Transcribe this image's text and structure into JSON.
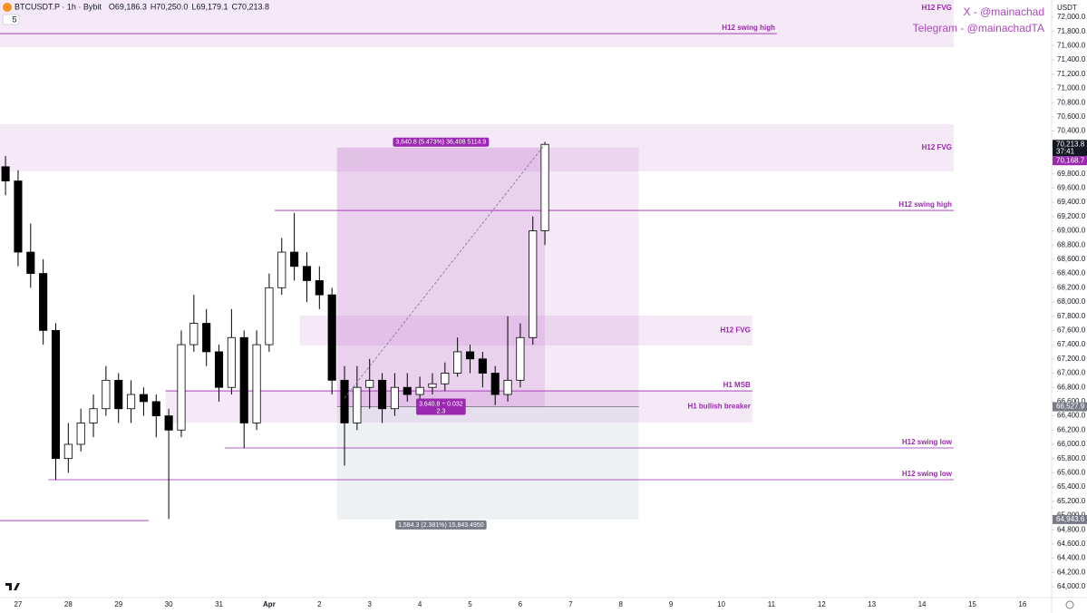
{
  "chart_data": {
    "type": "candlestick",
    "title": "BTCUSDT.P · 1h · Bybit",
    "ohlc_header": [
      {
        "value": 69186.3,
        "label": "O69,186.3"
      },
      {
        "value": 70250.0,
        "label": "H70,250.0"
      },
      {
        "value": 69179.1,
        "label": "L69,179.1"
      },
      {
        "value": 70213.8,
        "label": "C70,213.8"
      }
    ],
    "indicator_count": 5,
    "currency": "USDT",
    "watermark": [
      "X - @mainachad",
      "Telegram - @mainachadTA"
    ],
    "x": [
      -0.25,
      0,
      0.25,
      0.5,
      0.75,
      1,
      1.25,
      1.5,
      1.75,
      2,
      2.25,
      2.5,
      2.75,
      3,
      3.25,
      3.5,
      3.75,
      4,
      4.25,
      4.5,
      4.75,
      5,
      5.25,
      5.5,
      5.75,
      6,
      6.25,
      6.5,
      6.75,
      7,
      7.25,
      7.5,
      7.75,
      8,
      8.25,
      8.5,
      8.75,
      9,
      9.25,
      9.5,
      9.75,
      10,
      10.25,
      10.49
    ],
    "open": [
      69900,
      69700,
      68700,
      68400,
      67600,
      65800,
      66000,
      66300,
      66500,
      66900,
      66500,
      66700,
      66600,
      66400,
      66200,
      67400,
      67700,
      67300,
      66800,
      67500,
      66300,
      67400,
      68200,
      68700,
      68500,
      68300,
      68100,
      66900,
      66300,
      66800,
      66900,
      66500,
      66800,
      66700,
      66800,
      66850,
      67000,
      67300,
      67200,
      67000,
      66700,
      66900,
      67500,
      69000
    ],
    "high": [
      70050,
      69850,
      69100,
      68600,
      67700,
      66300,
      66500,
      66700,
      67100,
      67000,
      66900,
      66800,
      66700,
      66500,
      67600,
      68100,
      67900,
      67400,
      67900,
      67600,
      67600,
      68400,
      68900,
      69250,
      68700,
      68500,
      68200,
      67100,
      67100,
      67200,
      67000,
      67000,
      67000,
      66950,
      67000,
      67150,
      67500,
      67400,
      67300,
      67100,
      67800,
      67700,
      69200,
      70250
    ],
    "low": [
      69500,
      68500,
      68200,
      67400,
      65500,
      65600,
      65900,
      66100,
      66400,
      66300,
      66300,
      66400,
      66100,
      64950,
      66100,
      67300,
      67100,
      66600,
      66700,
      65950,
      66200,
      67300,
      68100,
      68300,
      68000,
      67900,
      66700,
      65700,
      66200,
      66500,
      66300,
      66400,
      66600,
      66600,
      66700,
      66750,
      66950,
      67000,
      66800,
      66550,
      66600,
      66800,
      67400,
      68800
    ],
    "close": [
      69700,
      68700,
      68400,
      67600,
      65800,
      66000,
      66300,
      66500,
      66900,
      66500,
      66700,
      66600,
      66400,
      66200,
      67400,
      67700,
      67300,
      66800,
      67500,
      66300,
      67400,
      68200,
      68700,
      68500,
      68300,
      68100,
      66900,
      66300,
      66800,
      66900,
      66500,
      66800,
      66700,
      66800,
      66850,
      67000,
      67300,
      67200,
      67000,
      66700,
      66900,
      67500,
      69000,
      70213.8
    ],
    "up_color": "#ffffff",
    "down_color": "#000000",
    "xlim": [
      -0.36,
      20.58
    ],
    "ylim": [
      63847,
      72242
    ],
    "grid": false,
    "xticks": [
      {
        "value": 0,
        "label": "27"
      },
      {
        "value": 1,
        "label": "28"
      },
      {
        "value": 2,
        "label": "29"
      },
      {
        "value": 3,
        "label": "30"
      },
      {
        "value": 4,
        "label": "31"
      },
      {
        "value": 5,
        "label": "Apr"
      },
      {
        "value": 6,
        "label": "2"
      },
      {
        "value": 7,
        "label": "3"
      },
      {
        "value": 8,
        "label": "4"
      },
      {
        "value": 9,
        "label": "5"
      },
      {
        "value": 10,
        "label": "6"
      },
      {
        "value": 11,
        "label": "7"
      },
      {
        "value": 12,
        "label": "8"
      },
      {
        "value": 13,
        "label": "9"
      },
      {
        "value": 14,
        "label": "10"
      },
      {
        "value": 15,
        "label": "11"
      },
      {
        "value": 16,
        "label": "12"
      },
      {
        "value": 17,
        "label": "13"
      },
      {
        "value": 18,
        "label": "14"
      },
      {
        "value": 19,
        "label": "15"
      },
      {
        "value": 20,
        "label": "16"
      }
    ],
    "yticks": [
      {
        "value": 72000,
        "label": "72,000.0"
      },
      {
        "value": 71800,
        "label": "71,800.0"
      },
      {
        "value": 71600,
        "label": "71,600.0"
      },
      {
        "value": 71400,
        "label": "71,400.0"
      },
      {
        "value": 71200,
        "label": "71,200.0"
      },
      {
        "value": 71000,
        "label": "71,000.0"
      },
      {
        "value": 70800,
        "label": "70,800.0"
      },
      {
        "value": 70600,
        "label": "70,600.0"
      },
      {
        "value": 70400,
        "label": "70,400.0"
      },
      {
        "value": 70200,
        "label": "70,200.0"
      },
      {
        "value": 70000,
        "label": "70,000.0"
      },
      {
        "value": 69800,
        "label": "69,800.0"
      },
      {
        "value": 69600,
        "label": "69,600.0"
      },
      {
        "value": 69400,
        "label": "69,400.0"
      },
      {
        "value": 69200,
        "label": "69,200.0"
      },
      {
        "value": 69000,
        "label": "69,000.0"
      },
      {
        "value": 68800,
        "label": "68,800.0"
      },
      {
        "value": 68600,
        "label": "68,600.0"
      },
      {
        "value": 68400,
        "label": "68,400.0"
      },
      {
        "value": 68200,
        "label": "68,200.0"
      },
      {
        "value": 68000,
        "label": "68,000.0"
      },
      {
        "value": 67800,
        "label": "67,800.0"
      },
      {
        "value": 67600,
        "label": "67,600.0"
      },
      {
        "value": 67400,
        "label": "67,400.0"
      },
      {
        "value": 67200,
        "label": "67,200.0"
      },
      {
        "value": 67000,
        "label": "67,000.0"
      },
      {
        "value": 66800,
        "label": "66,800.0"
      },
      {
        "value": 66600,
        "label": "66,600.0"
      },
      {
        "value": 66400,
        "label": "66,400.0"
      },
      {
        "value": 66200,
        "label": "66,200.0"
      },
      {
        "value": 66000,
        "label": "66,000.0"
      },
      {
        "value": 65800,
        "label": "65,800.0"
      },
      {
        "value": 65600,
        "label": "65,600.0"
      },
      {
        "value": 65400,
        "label": "65,400.0"
      },
      {
        "value": 65200,
        "label": "65,200.0"
      },
      {
        "value": 65000,
        "label": "65,000.0"
      },
      {
        "value": 64800,
        "label": "64,800.0"
      },
      {
        "value": 64600,
        "label": "64,600.0"
      },
      {
        "value": 64400,
        "label": "64,400.0"
      },
      {
        "value": 64200,
        "label": "64,200.0"
      },
      {
        "value": 64000,
        "label": "64,000.0"
      }
    ],
    "zone_color": "#9c27b0",
    "zones": [
      {
        "label": "H12 FVG",
        "y": [
          71580,
          72242
        ],
        "x": [
          -0.36,
          18.63
        ],
        "label_pos": "top"
      },
      {
        "label": "H12 FVG",
        "y": [
          69834,
          70497
        ],
        "x": [
          -0.36,
          18.63
        ],
        "label_pos": "middle"
      },
      {
        "label": "H12 FVG",
        "y": [
          67388,
          67809
        ],
        "x": [
          5.61,
          14.62
        ],
        "label_pos": "middle"
      },
      {
        "label": "H1 bullish breaker",
        "y": [
          66305,
          66751
        ],
        "x": [
          2.94,
          14.62
        ],
        "label_pos": "middle"
      }
    ],
    "levels": [
      {
        "label": "H12 swing high",
        "y": 71770,
        "x": [
          -0.36,
          15.11
        ]
      },
      {
        "label": "H12 swing high",
        "y": 69286,
        "x": [
          5.11,
          18.63
        ]
      },
      {
        "label": "H1 MSB",
        "y": 66751,
        "x": [
          2.94,
          14.62
        ]
      },
      {
        "label": "H12 swing low",
        "y": 65949,
        "x": [
          4.12,
          18.63
        ]
      },
      {
        "label": "H12 swing low",
        "y": 65503,
        "x": [
          0.6,
          18.63
        ]
      },
      {
        "y": 64929,
        "x": [
          -0.36,
          2.6
        ]
      }
    ],
    "position": {
      "x": [
        6.35,
        12.36
      ],
      "reached_x": 10.49,
      "entry": {
        "value": 66527.9,
        "label": "66,527.9"
      },
      "target": {
        "value": 70168.7,
        "label": "70,168.7"
      },
      "stop": {
        "value": 64943.6,
        "label": "64,943.6"
      },
      "target_text": "3,640.8 (5.473%) 36,408 5114.9",
      "ratio_text": [
        "3,640.8 ÷ 0.032",
        "2.3"
      ],
      "stop_text": "1,584.3 (2.381%) 15,843.4950"
    },
    "measure_line": {
      "x": [
        6.5,
        10.49
      ],
      "y": [
        66650,
        70213.8
      ]
    },
    "last_price": {
      "value": 70213.8,
      "label": "70,213.8",
      "countdown": "37:41"
    }
  }
}
